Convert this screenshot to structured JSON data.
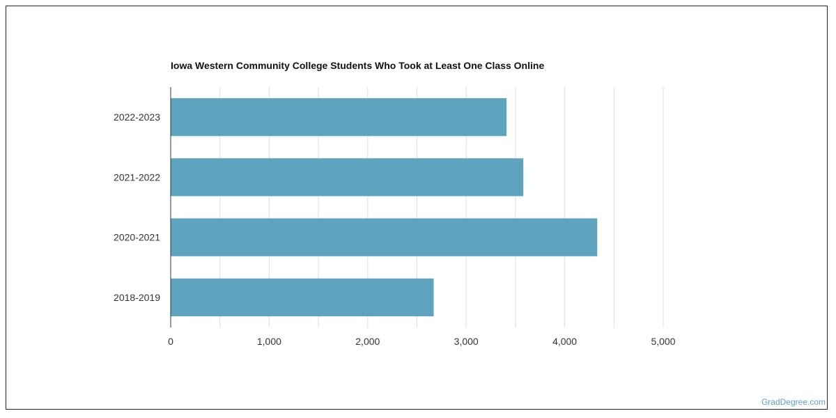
{
  "chart_data": {
    "type": "bar",
    "orientation": "horizontal",
    "title": "Iowa Western Community College Students Who Took at Least One Class Online",
    "categories": [
      "2022-2023",
      "2021-2022",
      "2020-2021",
      "2018-2019"
    ],
    "values": [
      3410,
      3580,
      4330,
      2670
    ],
    "xlabel": "",
    "ylabel": "",
    "xlim": [
      0,
      5000
    ],
    "xticks": [
      "0",
      "1,000",
      "2,000",
      "3,000",
      "4,000",
      "5,000"
    ],
    "grid": true,
    "legend": "none",
    "bar_color": "#5ea4bf"
  },
  "credit": "GradDegree.com"
}
